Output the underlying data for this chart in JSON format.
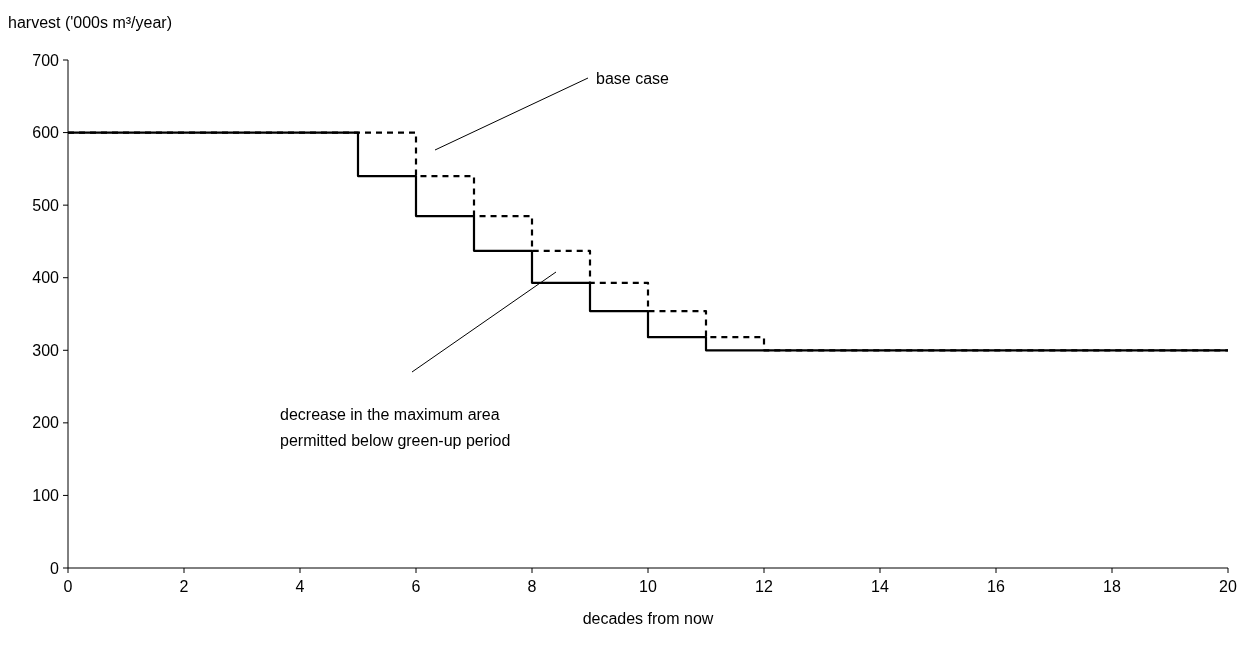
{
  "chart_data": {
    "type": "step",
    "xlabel": "decades from now",
    "ylabel": "harvest ('000s m³/year)",
    "xlim": [
      0,
      20
    ],
    "xticks": [
      0,
      2,
      4,
      6,
      8,
      10,
      12,
      14,
      16,
      18,
      20
    ],
    "ylim": [
      0,
      700
    ],
    "yticks": [
      0,
      100,
      200,
      300,
      400,
      500,
      600,
      700
    ],
    "grid": false,
    "marker": "none",
    "series": [
      {
        "color": "#000000",
        "line_style": "dashed",
        "x": [
          0,
          6,
          7,
          8,
          9,
          10,
          11,
          12,
          20
        ],
        "values": [
          600,
          540,
          485,
          437,
          393,
          354,
          318,
          300,
          300
        ]
      },
      {
        "color": "#000000",
        "line_style": "solid",
        "x": [
          0,
          5,
          6,
          7,
          8,
          9,
          10,
          11,
          20
        ],
        "values": [
          600,
          540,
          485,
          437,
          393,
          354,
          318,
          300,
          300
        ]
      }
    ],
    "annotations": [
      "base case",
      "decrease in the maximum area\npermitted below green-up period"
    ]
  }
}
